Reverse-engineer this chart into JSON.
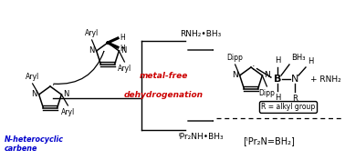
{
  "bg_color": "#ffffff",
  "nhc_label": "N-heterocyclic\ncarbene",
  "nhc_label_color": "#0000cc",
  "red_line1": "metal-free",
  "red_line2": "dehydrogenation",
  "red_color": "#cc0000",
  "reagent_top": "RNH₂•BH₃",
  "reagent_bottom": "ⁱPr₂NH•BH₃",
  "product_bottom": "[ⁱPr₂N=BH₂]",
  "box_text": "R = alkyl group",
  "dipp": "Dipp",
  "bh3": "BH₃",
  "plus_rnh2": "+ RNH₂",
  "sc": "#000000"
}
